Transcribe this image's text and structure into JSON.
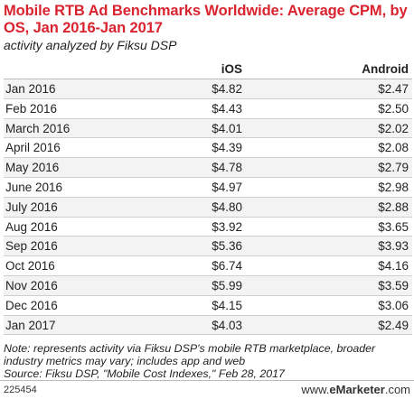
{
  "chart_data": {
    "type": "table",
    "title": "Mobile RTB Ad Benchmarks Worldwide: Average CPM, by OS, Jan 2016-Jan 2017",
    "subtitle": "activity analyzed by Fiksu DSP",
    "columns": [
      "",
      "iOS",
      "Android"
    ],
    "rows": [
      {
        "label": "Jan 2016",
        "ios": "$4.82",
        "android": "$2.47"
      },
      {
        "label": "Feb 2016",
        "ios": "$4.43",
        "android": "$2.50"
      },
      {
        "label": "March 2016",
        "ios": "$4.01",
        "android": "$2.02"
      },
      {
        "label": "April 2016",
        "ios": "$4.39",
        "android": "$2.08"
      },
      {
        "label": "May 2016",
        "ios": "$4.78",
        "android": "$2.79"
      },
      {
        "label": "June 2016",
        "ios": "$4.97",
        "android": "$2.98"
      },
      {
        "label": "July 2016",
        "ios": "$4.80",
        "android": "$2.88"
      },
      {
        "label": "Aug 2016",
        "ios": "$3.92",
        "android": "$3.65"
      },
      {
        "label": "Sep 2016",
        "ios": "$5.36",
        "android": "$3.93"
      },
      {
        "label": "Oct 2016",
        "ios": "$6.74",
        "android": "$4.16"
      },
      {
        "label": "Nov 2016",
        "ios": "$5.99",
        "android": "$3.59"
      },
      {
        "label": "Dec 2016",
        "ios": "$4.15",
        "android": "$3.06"
      },
      {
        "label": "Jan 2017",
        "ios": "$4.03",
        "android": "$2.49"
      }
    ],
    "note": "Note: represents activity via Fiksu DSP's mobile RTB marketplace, broader industry metrics may vary; includes app and web",
    "source": "Source: Fiksu DSP, \"Mobile Cost Indexes,\" Feb 28, 2017"
  },
  "footer": {
    "chart_id": "225454",
    "brand_prefix": "www.",
    "brand_name": "eMarketer",
    "brand_suffix": ".com"
  }
}
